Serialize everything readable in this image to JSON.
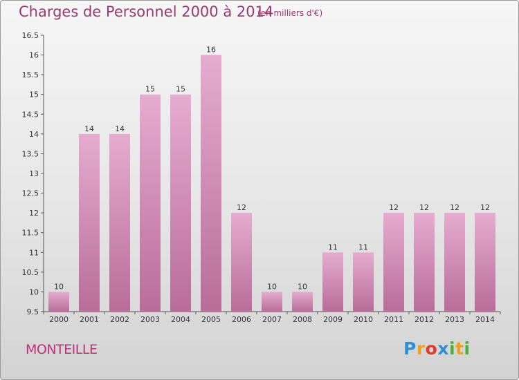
{
  "title": "Charges de Personnel 2000 à 2014",
  "subtitle": "(en milliers d'€)",
  "town": "MONTEILLE",
  "brand": {
    "letters": [
      {
        "ch": "P",
        "color": "#2f8fd0"
      },
      {
        "ch": "r",
        "color": "#f0a020"
      },
      {
        "ch": "o",
        "color": "#e23a2a"
      },
      {
        "ch": "x",
        "color": "#2f8fd0"
      },
      {
        "ch": "i",
        "color": "#4fae3a"
      },
      {
        "ch": "t",
        "color": "#f0a020"
      },
      {
        "ch": "i",
        "color": "#4fae3a"
      }
    ]
  },
  "colors": {
    "bar_top": "#e6acd0",
    "bar_bottom": "#b86d98",
    "text_accent": "#9c3a6c"
  },
  "chart_data": {
    "type": "bar",
    "categories": [
      "2000",
      "2001",
      "2002",
      "2003",
      "2004",
      "2005",
      "2006",
      "2007",
      "2008",
      "2009",
      "2010",
      "2011",
      "2012",
      "2013",
      "2014"
    ],
    "values": [
      10,
      14,
      14,
      15,
      15,
      16,
      12,
      10,
      10,
      11,
      11,
      12,
      12,
      12,
      12
    ],
    "data_labels": [
      "10",
      "14",
      "14",
      "15",
      "15",
      "16",
      "12",
      "10",
      "10",
      "11",
      "11",
      "12",
      "12",
      "12",
      "12"
    ],
    "ylim": [
      9.5,
      16.5
    ],
    "yticks": [
      9.5,
      10,
      10.5,
      11,
      11.5,
      12,
      12.5,
      13,
      13.5,
      14,
      14.5,
      15,
      15.5,
      16,
      16.5
    ],
    "ytick_labels": [
      "9.5",
      "10",
      "10.5",
      "11",
      "11.5",
      "12",
      "12.5",
      "13",
      "13.5",
      "14",
      "14.5",
      "15",
      "15.5",
      "16",
      "16.5"
    ],
    "grid": false,
    "legend": "none"
  }
}
